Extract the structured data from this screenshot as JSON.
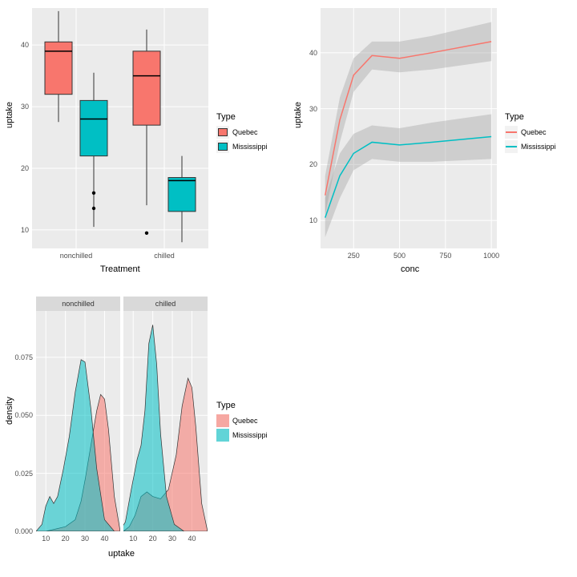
{
  "colors": {
    "quebec": "#f8766d",
    "mississippi": "#00bfc4",
    "panel_bg": "#ebebeb",
    "grid_major": "#ffffff",
    "ribbon": "#999999",
    "outlier": "#000000",
    "strip_bg": "#d9d9d9"
  },
  "legend": {
    "title": "Type",
    "items": [
      "Quebec",
      "Mississippi"
    ]
  },
  "boxplot": {
    "type": "boxplot",
    "xlabel": "Treatment",
    "ylabel": "uptake",
    "x_categories": [
      "nonchilled",
      "chilled"
    ],
    "yticks": [
      10,
      20,
      30,
      40
    ],
    "ylim": [
      7,
      46
    ],
    "box_width": 0.35,
    "boxes": [
      {
        "cat": "nonchilled",
        "type": "Quebec",
        "min": 27.5,
        "q1": 32,
        "median": 39,
        "q3": 40.5,
        "max": 45.5,
        "outliers": []
      },
      {
        "cat": "nonchilled",
        "type": "Mississippi",
        "min": 10.5,
        "q1": 22,
        "median": 28,
        "q3": 31,
        "max": 35.5,
        "outliers": [
          13.5,
          16
        ]
      },
      {
        "cat": "chilled",
        "type": "Quebec",
        "min": 14,
        "q1": 27,
        "median": 35,
        "q3": 39,
        "max": 42.5,
        "outliers": [
          9.5
        ]
      },
      {
        "cat": "chilled",
        "type": "Mississippi",
        "min": 8,
        "q1": 13,
        "median": 18,
        "q3": 18.5,
        "max": 22,
        "outliers": []
      }
    ]
  },
  "smooth": {
    "type": "line",
    "xlabel": "conc",
    "ylabel": "uptake",
    "xticks": [
      250,
      500,
      750,
      1000
    ],
    "yticks": [
      10,
      20,
      30,
      40
    ],
    "xlim": [
      70,
      1030
    ],
    "ylim": [
      5,
      48
    ],
    "series": [
      {
        "type": "Quebec",
        "color": "#f8766d",
        "x": [
          95,
          175,
          250,
          350,
          500,
          675,
          1000
        ],
        "y": [
          14.5,
          28,
          36,
          39.5,
          39,
          40,
          42
        ],
        "ribbon_lo": [
          11,
          24,
          33,
          37,
          36.5,
          37,
          38.5
        ],
        "ribbon_hi": [
          18,
          32,
          39,
          42,
          42,
          43,
          45.5
        ]
      },
      {
        "type": "Mississippi",
        "color": "#00bfc4",
        "x": [
          95,
          175,
          250,
          350,
          500,
          675,
          1000
        ],
        "y": [
          10.5,
          18,
          22,
          24,
          23.5,
          24,
          25
        ],
        "ribbon_lo": [
          7,
          14,
          19,
          21,
          20.5,
          20.5,
          21
        ],
        "ribbon_hi": [
          14,
          22,
          25.5,
          27,
          26.5,
          27.5,
          29
        ]
      }
    ]
  },
  "density": {
    "type": "density",
    "xlabel": "uptake",
    "ylabel": "density",
    "facets": [
      "nonchilled",
      "chilled"
    ],
    "xticks": [
      10,
      20,
      30,
      40
    ],
    "yticks": [
      0.0,
      0.025,
      0.05,
      0.075
    ],
    "xlim": [
      5,
      48
    ],
    "ylim": [
      0,
      0.095
    ],
    "fill_opacity": 0.55,
    "curves": [
      {
        "facet": "nonchilled",
        "type": "Quebec",
        "color": "#f8766d",
        "x": [
          10,
          15,
          20,
          25,
          28,
          30,
          33,
          36,
          38,
          40,
          42,
          45,
          48
        ],
        "y": [
          0,
          0.001,
          0.002,
          0.005,
          0.013,
          0.022,
          0.037,
          0.052,
          0.059,
          0.057,
          0.044,
          0.015,
          0
        ]
      },
      {
        "facet": "nonchilled",
        "type": "Mississippi",
        "color": "#00bfc4",
        "x": [
          5,
          8,
          10,
          12,
          14,
          16,
          19,
          22,
          25,
          28,
          30,
          33,
          36,
          40,
          45
        ],
        "y": [
          0,
          0.003,
          0.011,
          0.015,
          0.012,
          0.015,
          0.027,
          0.041,
          0.06,
          0.074,
          0.073,
          0.053,
          0.027,
          0.005,
          0
        ]
      },
      {
        "facet": "chilled",
        "type": "Quebec",
        "color": "#f8766d",
        "x": [
          5,
          8,
          11,
          14,
          17,
          20,
          24,
          28,
          32,
          35,
          38,
          40,
          42,
          45,
          48
        ],
        "y": [
          0,
          0.002,
          0.007,
          0.015,
          0.017,
          0.015,
          0.014,
          0.018,
          0.033,
          0.054,
          0.066,
          0.062,
          0.045,
          0.012,
          0
        ]
      },
      {
        "facet": "chilled",
        "type": "Mississippi",
        "color": "#00bfc4",
        "x": [
          3,
          6,
          9,
          12,
          14,
          16,
          18,
          20,
          22,
          24,
          27,
          31,
          36
        ],
        "y": [
          0,
          0.004,
          0.018,
          0.031,
          0.037,
          0.052,
          0.081,
          0.089,
          0.072,
          0.042,
          0.015,
          0.003,
          0
        ]
      }
    ]
  }
}
